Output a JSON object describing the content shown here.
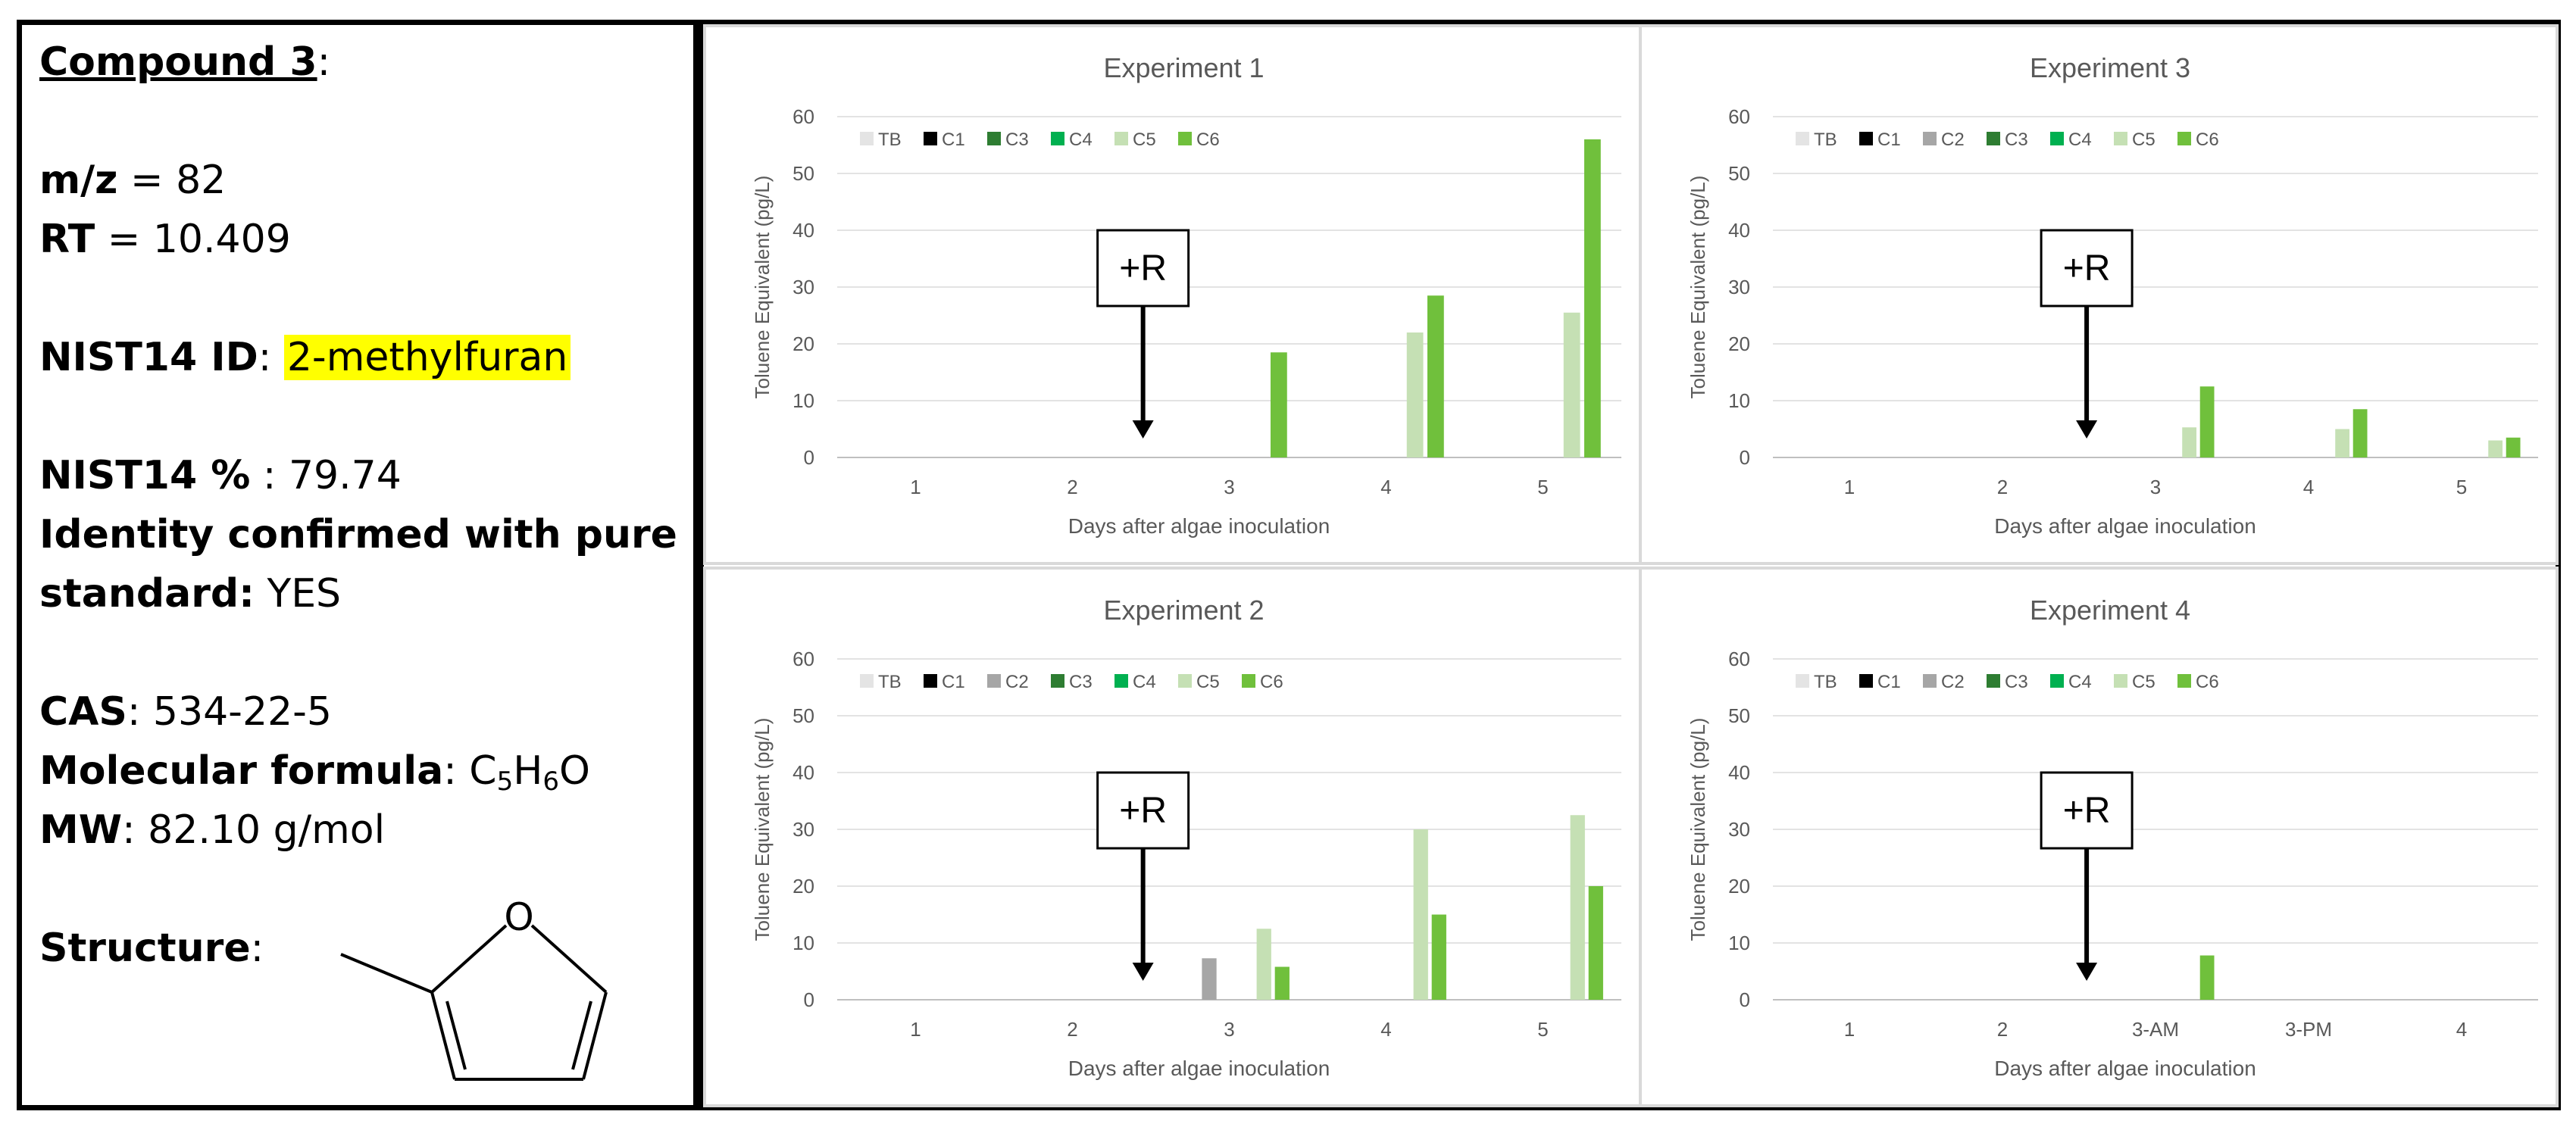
{
  "info": {
    "compound_label": "Compound 3",
    "mz_label": "m/z",
    "mz_value": "82",
    "rt_label": "RT",
    "rt_value": "10.409",
    "nist_id_label": "NIST14 ID",
    "nist_id_value": "2-methylfuran",
    "nist_pct_label": "NIST14 %",
    "nist_pct_value": "79.74",
    "identity_label_1": "Identity confirmed with pure",
    "identity_label_2": "standard:",
    "identity_value": "YES",
    "cas_label": "CAS",
    "cas_value": "534-22-5",
    "formula_label": "Molecular formula",
    "formula_c": "C",
    "formula_c_n": "5",
    "formula_h": "H",
    "formula_h_n": "6",
    "formula_o": "O",
    "mw_label": "MW",
    "mw_value": "82.10 g/mol",
    "structure_label": "Structure",
    "structure_atom": "O"
  },
  "colors": {
    "TB": "#e4e4e4",
    "C1": "#000000",
    "C2": "#a6a6a6",
    "C3": "#2e7d32",
    "C4": "#00b050",
    "C5": "#c5e0b4",
    "C6": "#70c03c"
  },
  "chart_data": [
    {
      "type": "bar",
      "title": "Experiment 1",
      "xlabel": "Days after algae inoculation",
      "ylabel": "Toluene Equivalent (pg/L)",
      "ylim": [
        0,
        60
      ],
      "yticks": [
        0,
        10,
        20,
        30,
        40,
        50,
        60
      ],
      "categories": [
        "1",
        "2",
        "3",
        "4",
        "5"
      ],
      "legend": "top-left",
      "annotation": "+R",
      "annotation_x": 1.45,
      "series": [
        {
          "name": "TB",
          "values": [
            0,
            0,
            0,
            0,
            0
          ]
        },
        {
          "name": "C1",
          "values": [
            0,
            0,
            0,
            0,
            0
          ]
        },
        {
          "name": "C3",
          "values": [
            0,
            0,
            0,
            0,
            0
          ]
        },
        {
          "name": "C4",
          "values": [
            0,
            0,
            0,
            0,
            0
          ]
        },
        {
          "name": "C5",
          "values": [
            0,
            0,
            0,
            22,
            25.5
          ]
        },
        {
          "name": "C6",
          "values": [
            0,
            0,
            18.5,
            28.5,
            56
          ]
        }
      ]
    },
    {
      "type": "bar",
      "title": "Experiment 3",
      "xlabel": "Days after algae inoculation",
      "ylabel": "Toluene Equivalent (pg/L)",
      "ylim": [
        0,
        60
      ],
      "yticks": [
        0,
        10,
        20,
        30,
        40,
        50,
        60
      ],
      "categories": [
        "1",
        "2",
        "3",
        "4",
        "5"
      ],
      "legend": "top-left",
      "annotation": "+R",
      "annotation_x": 1.55,
      "series": [
        {
          "name": "TB",
          "values": [
            0,
            0,
            0,
            0,
            0
          ]
        },
        {
          "name": "C1",
          "values": [
            0,
            0,
            0,
            0,
            0
          ]
        },
        {
          "name": "C2",
          "values": [
            0,
            0,
            0,
            0,
            0
          ]
        },
        {
          "name": "C3",
          "values": [
            0,
            0,
            0,
            0,
            0
          ]
        },
        {
          "name": "C4",
          "values": [
            0,
            0,
            0,
            0,
            0
          ]
        },
        {
          "name": "C5",
          "values": [
            0,
            0,
            5.3,
            5,
            3
          ]
        },
        {
          "name": "C6",
          "values": [
            0,
            0,
            12.5,
            8.5,
            3.5
          ]
        }
      ]
    },
    {
      "type": "bar",
      "title": "Experiment 2",
      "xlabel": "Days after algae inoculation",
      "ylabel": "Toluene Equivalent (pg/L)",
      "ylim": [
        0,
        60
      ],
      "yticks": [
        0,
        10,
        20,
        30,
        40,
        50,
        60
      ],
      "categories": [
        "1",
        "2",
        "3",
        "4",
        "5"
      ],
      "legend": "top-left",
      "annotation": "+R",
      "annotation_x": 1.45,
      "series": [
        {
          "name": "TB",
          "values": [
            0,
            0,
            0,
            0,
            0
          ]
        },
        {
          "name": "C1",
          "values": [
            0,
            0,
            0,
            0,
            0
          ]
        },
        {
          "name": "C2",
          "values": [
            0,
            0,
            7.3,
            0,
            0
          ]
        },
        {
          "name": "C3",
          "values": [
            0,
            0,
            0,
            0,
            0
          ]
        },
        {
          "name": "C4",
          "values": [
            0,
            0,
            0,
            0,
            0
          ]
        },
        {
          "name": "C5",
          "values": [
            0,
            0,
            12.5,
            30,
            32.5
          ]
        },
        {
          "name": "C6",
          "values": [
            0,
            0,
            5.8,
            15,
            20
          ]
        }
      ]
    },
    {
      "type": "bar",
      "title": "Experiment 4",
      "xlabel": "Days after algae inoculation",
      "ylabel": "Toluene Equivalent (pg/L)",
      "ylim": [
        0,
        60
      ],
      "yticks": [
        0,
        10,
        20,
        30,
        40,
        50,
        60
      ],
      "categories": [
        "1",
        "2",
        "3-AM",
        "3-PM",
        "4"
      ],
      "legend": "top-left",
      "annotation": "+R",
      "annotation_x": 1.55,
      "series": [
        {
          "name": "TB",
          "values": [
            0,
            0,
            0,
            0,
            0
          ]
        },
        {
          "name": "C1",
          "values": [
            0,
            0,
            0,
            0,
            0
          ]
        },
        {
          "name": "C2",
          "values": [
            0,
            0,
            0,
            0,
            0
          ]
        },
        {
          "name": "C3",
          "values": [
            0,
            0,
            0,
            0,
            0
          ]
        },
        {
          "name": "C4",
          "values": [
            0,
            0,
            0,
            0,
            0
          ]
        },
        {
          "name": "C5",
          "values": [
            0,
            0,
            0,
            0,
            0
          ]
        },
        {
          "name": "C6",
          "values": [
            0,
            0,
            7.8,
            0,
            0
          ]
        }
      ]
    }
  ]
}
